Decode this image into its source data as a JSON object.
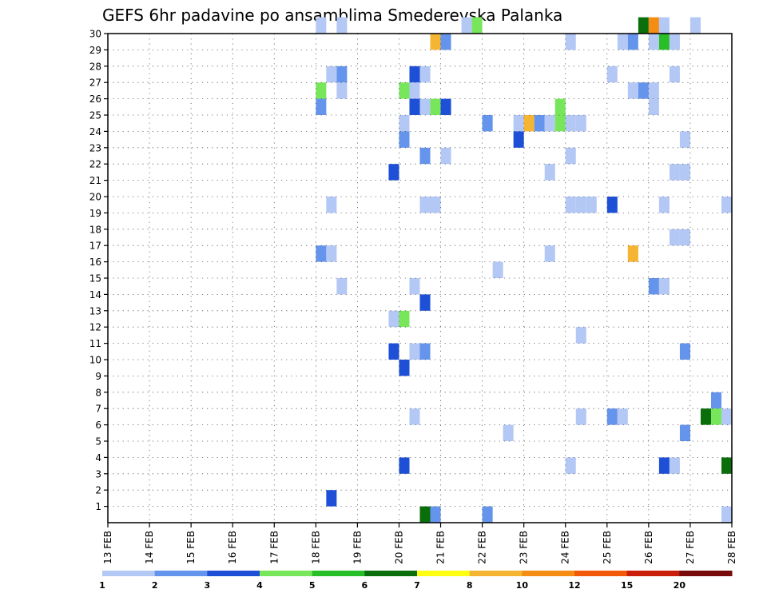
{
  "chart_data": {
    "type": "heatmap",
    "title": "GEFS 6hr padavine po ansamblima Smederevska Palanka",
    "x_tick_labels": [
      "13 FEB",
      "14 FEB",
      "15 FEB",
      "16 FEB",
      "17 FEB",
      "18 FEB",
      "19 FEB",
      "20 FEB",
      "21 FEB",
      "22 FEB",
      "23 FEB",
      "24 FEB",
      "25 FEB",
      "26 FEB",
      "27 FEB",
      "28 FEB"
    ],
    "y_tick_labels": [
      "1",
      "2",
      "3",
      "4",
      "5",
      "6",
      "7",
      "8",
      "9",
      "10",
      "11",
      "12",
      "13",
      "14",
      "15",
      "16",
      "17",
      "18",
      "19",
      "20",
      "21",
      "22",
      "23",
      "24",
      "25",
      "26",
      "27",
      "28",
      "29",
      "30"
    ],
    "xlim_days": [
      13,
      28
    ],
    "ylim": [
      0,
      30
    ],
    "grid": true,
    "legend": {
      "placement": "bottom",
      "labels": [
        "1",
        "2",
        "3",
        "4",
        "5",
        "6",
        "7",
        "8",
        "10",
        "12",
        "15",
        "20"
      ],
      "colors": [
        "#b4c8f5",
        "#6494eb",
        "#1e50d7",
        "#78e65a",
        "#28be28",
        "#0a6e0a",
        "#ffff14",
        "#f5b432",
        "#f58c14",
        "#f05a0a",
        "#c81e0a",
        "#780a0a"
      ]
    },
    "cells": [
      {
        "day": 18.25,
        "member": 30,
        "c": 0
      },
      {
        "day": 18.75,
        "member": 30,
        "c": 0
      },
      {
        "day": 21.75,
        "member": 30,
        "c": 0
      },
      {
        "day": 22.0,
        "member": 30,
        "c": 3
      },
      {
        "day": 26.0,
        "member": 30,
        "c": 5
      },
      {
        "day": 26.25,
        "member": 30,
        "c": 8
      },
      {
        "day": 26.5,
        "member": 30,
        "c": 0
      },
      {
        "day": 27.25,
        "member": 30,
        "c": 0
      },
      {
        "day": 21.0,
        "member": 29,
        "c": 7
      },
      {
        "day": 21.25,
        "member": 29,
        "c": 1
      },
      {
        "day": 24.25,
        "member": 29,
        "c": 0
      },
      {
        "day": 25.5,
        "member": 29,
        "c": 0
      },
      {
        "day": 25.75,
        "member": 29,
        "c": 1
      },
      {
        "day": 26.25,
        "member": 29,
        "c": 0
      },
      {
        "day": 26.5,
        "member": 29,
        "c": 4
      },
      {
        "day": 26.75,
        "member": 29,
        "c": 0
      },
      {
        "day": 18.5,
        "member": 27,
        "c": 0
      },
      {
        "day": 18.75,
        "member": 27,
        "c": 1
      },
      {
        "day": 20.5,
        "member": 27,
        "c": 2
      },
      {
        "day": 20.75,
        "member": 27,
        "c": 0
      },
      {
        "day": 25.25,
        "member": 27,
        "c": 0
      },
      {
        "day": 26.75,
        "member": 27,
        "c": 0
      },
      {
        "day": 18.25,
        "member": 26,
        "c": 3
      },
      {
        "day": 18.75,
        "member": 26,
        "c": 0
      },
      {
        "day": 20.25,
        "member": 26,
        "c": 3
      },
      {
        "day": 20.5,
        "member": 26,
        "c": 0
      },
      {
        "day": 25.75,
        "member": 26,
        "c": 0
      },
      {
        "day": 26.0,
        "member": 26,
        "c": 1
      },
      {
        "day": 26.25,
        "member": 26,
        "c": 0
      },
      {
        "day": 18.25,
        "member": 25,
        "c": 1
      },
      {
        "day": 20.5,
        "member": 25,
        "c": 2
      },
      {
        "day": 20.75,
        "member": 25,
        "c": 0
      },
      {
        "day": 21.0,
        "member": 25,
        "c": 3
      },
      {
        "day": 21.25,
        "member": 25,
        "c": 2
      },
      {
        "day": 24.0,
        "member": 25,
        "c": 3
      },
      {
        "day": 26.25,
        "member": 25,
        "c": 0
      },
      {
        "day": 20.25,
        "member": 24,
        "c": 0
      },
      {
        "day": 22.25,
        "member": 24,
        "c": 1
      },
      {
        "day": 23.0,
        "member": 24,
        "c": 0
      },
      {
        "day": 23.25,
        "member": 24,
        "c": 7
      },
      {
        "day": 23.5,
        "member": 24,
        "c": 1
      },
      {
        "day": 23.75,
        "member": 24,
        "c": 0
      },
      {
        "day": 24.0,
        "member": 24,
        "c": 3
      },
      {
        "day": 24.25,
        "member": 24,
        "c": 0
      },
      {
        "day": 24.5,
        "member": 24,
        "c": 0
      },
      {
        "day": 20.25,
        "member": 23,
        "c": 1
      },
      {
        "day": 23.0,
        "member": 23,
        "c": 2
      },
      {
        "day": 27.0,
        "member": 23,
        "c": 0
      },
      {
        "day": 20.75,
        "member": 22,
        "c": 1
      },
      {
        "day": 21.25,
        "member": 22,
        "c": 0
      },
      {
        "day": 24.25,
        "member": 22,
        "c": 0
      },
      {
        "day": 20.0,
        "member": 21,
        "c": 2
      },
      {
        "day": 23.75,
        "member": 21,
        "c": 0
      },
      {
        "day": 26.75,
        "member": 21,
        "c": 0
      },
      {
        "day": 27.0,
        "member": 21,
        "c": 0
      },
      {
        "day": 18.5,
        "member": 19,
        "c": 0
      },
      {
        "day": 20.75,
        "member": 19,
        "c": 0
      },
      {
        "day": 21.0,
        "member": 19,
        "c": 0
      },
      {
        "day": 24.25,
        "member": 19,
        "c": 0
      },
      {
        "day": 24.5,
        "member": 19,
        "c": 0
      },
      {
        "day": 24.75,
        "member": 19,
        "c": 0
      },
      {
        "day": 25.25,
        "member": 19,
        "c": 2
      },
      {
        "day": 26.5,
        "member": 19,
        "c": 0
      },
      {
        "day": 28.0,
        "member": 19,
        "c": 0
      },
      {
        "day": 26.75,
        "member": 17,
        "c": 0
      },
      {
        "day": 27.0,
        "member": 17,
        "c": 0
      },
      {
        "day": 18.25,
        "member": 16,
        "c": 1
      },
      {
        "day": 18.5,
        "member": 16,
        "c": 0
      },
      {
        "day": 23.75,
        "member": 16,
        "c": 0
      },
      {
        "day": 25.75,
        "member": 16,
        "c": 7
      },
      {
        "day": 22.5,
        "member": 15,
        "c": 0
      },
      {
        "day": 18.75,
        "member": 14,
        "c": 0
      },
      {
        "day": 20.5,
        "member": 14,
        "c": 0
      },
      {
        "day": 26.25,
        "member": 14,
        "c": 1
      },
      {
        "day": 26.5,
        "member": 14,
        "c": 0
      },
      {
        "day": 20.75,
        "member": 13,
        "c": 2
      },
      {
        "day": 20.0,
        "member": 12,
        "c": 0
      },
      {
        "day": 20.25,
        "member": 12,
        "c": 3
      },
      {
        "day": 24.5,
        "member": 11,
        "c": 0
      },
      {
        "day": 20.0,
        "member": 10,
        "c": 2
      },
      {
        "day": 20.5,
        "member": 10,
        "c": 0
      },
      {
        "day": 20.75,
        "member": 10,
        "c": 1
      },
      {
        "day": 27.0,
        "member": 10,
        "c": 1
      },
      {
        "day": 20.25,
        "member": 9,
        "c": 2
      },
      {
        "day": 27.75,
        "member": 7,
        "c": 1
      },
      {
        "day": 20.5,
        "member": 6,
        "c": 0
      },
      {
        "day": 24.5,
        "member": 6,
        "c": 0
      },
      {
        "day": 25.25,
        "member": 6,
        "c": 1
      },
      {
        "day": 25.5,
        "member": 6,
        "c": 0
      },
      {
        "day": 27.5,
        "member": 6,
        "c": 5
      },
      {
        "day": 27.75,
        "member": 6,
        "c": 3
      },
      {
        "day": 28.0,
        "member": 6,
        "c": 0
      },
      {
        "day": 22.75,
        "member": 5,
        "c": 0
      },
      {
        "day": 27.0,
        "member": 5,
        "c": 1
      },
      {
        "day": 20.25,
        "member": 3,
        "c": 2
      },
      {
        "day": 24.25,
        "member": 3,
        "c": 0
      },
      {
        "day": 26.5,
        "member": 3,
        "c": 2
      },
      {
        "day": 26.75,
        "member": 3,
        "c": 0
      },
      {
        "day": 28.0,
        "member": 3,
        "c": 5
      },
      {
        "day": 18.5,
        "member": 1,
        "c": 2
      },
      {
        "day": 20.75,
        "member": 0,
        "c": 5
      },
      {
        "day": 21.0,
        "member": 0,
        "c": 1
      },
      {
        "day": 22.25,
        "member": 0,
        "c": 1
      },
      {
        "day": 28.0,
        "member": 0,
        "c": 0
      }
    ]
  }
}
